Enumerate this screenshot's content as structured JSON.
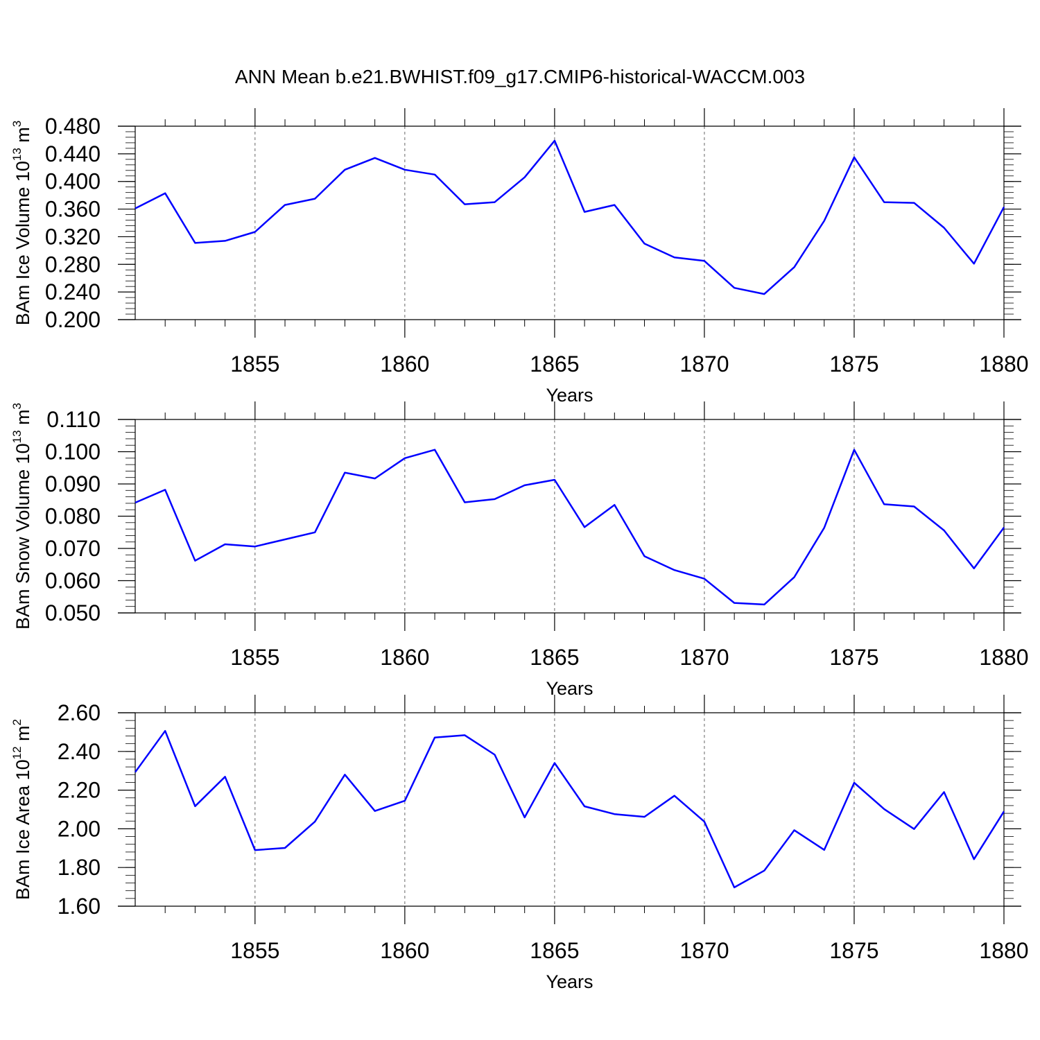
{
  "title": "ANN Mean b.e21.BWHIST.f09_g17.CMIP6-historical-WACCM.003",
  "line_color": "#0000ff",
  "chart_data": [
    {
      "type": "line",
      "ylabel": {
        "main": "BAm Ice Volume 10",
        "sup": "13",
        "unit": " m",
        "unit_sup": "3"
      },
      "xlabel": "Years",
      "xlim": [
        1851,
        1880
      ],
      "ylim": [
        0.2,
        0.48
      ],
      "x_ticks": [
        1855,
        1860,
        1865,
        1870,
        1875,
        1880
      ],
      "x_tick_labels": [
        "1855",
        "1860",
        "1865",
        "1870",
        "1875",
        "1880"
      ],
      "y_ticks": [
        0.2,
        0.24,
        0.28,
        0.32,
        0.36,
        0.4,
        0.44,
        0.48
      ],
      "y_tick_labels": [
        "0.200",
        "0.240",
        "0.280",
        "0.320",
        "0.360",
        "0.400",
        "0.440",
        "0.480"
      ],
      "y_minor_step": 0.008,
      "grid": "dashed vertical at major x ticks",
      "x": [
        1851,
        1852,
        1853,
        1854,
        1855,
        1856,
        1857,
        1858,
        1859,
        1860,
        1861,
        1862,
        1863,
        1864,
        1865,
        1866,
        1867,
        1868,
        1869,
        1870,
        1871,
        1872,
        1873,
        1874,
        1875,
        1876,
        1877,
        1878,
        1879,
        1880
      ],
      "y": [
        0.361,
        0.383,
        0.311,
        0.314,
        0.327,
        0.366,
        0.375,
        0.417,
        0.434,
        0.417,
        0.41,
        0.367,
        0.37,
        0.406,
        0.459,
        0.356,
        0.366,
        0.31,
        0.29,
        0.285,
        0.246,
        0.237,
        0.276,
        0.343,
        0.435,
        0.37,
        0.369,
        0.333,
        0.281,
        0.363
      ]
    },
    {
      "type": "line",
      "ylabel": {
        "main": "BAm Snow Volume 10",
        "sup": "13",
        "unit": " m",
        "unit_sup": "3"
      },
      "xlabel": "Years",
      "xlim": [
        1851,
        1880
      ],
      "ylim": [
        0.05,
        0.11
      ],
      "x_ticks": [
        1855,
        1860,
        1865,
        1870,
        1875,
        1880
      ],
      "x_tick_labels": [
        "1855",
        "1860",
        "1865",
        "1870",
        "1875",
        "1880"
      ],
      "y_ticks": [
        0.05,
        0.06,
        0.07,
        0.08,
        0.09,
        0.1,
        0.11
      ],
      "y_tick_labels": [
        "0.050",
        "0.060",
        "0.070",
        "0.080",
        "0.090",
        "0.100",
        "0.110"
      ],
      "y_minor_step": 0.002,
      "grid": "dashed vertical at major x ticks",
      "x": [
        1851,
        1852,
        1853,
        1854,
        1855,
        1856,
        1857,
        1858,
        1859,
        1860,
        1861,
        1862,
        1863,
        1864,
        1865,
        1866,
        1867,
        1868,
        1869,
        1870,
        1871,
        1872,
        1873,
        1874,
        1875,
        1876,
        1877,
        1878,
        1879,
        1880
      ],
      "y": [
        0.0842,
        0.0882,
        0.0662,
        0.0713,
        0.0706,
        0.0728,
        0.075,
        0.0935,
        0.0917,
        0.098,
        0.1006,
        0.0843,
        0.0853,
        0.0896,
        0.0913,
        0.0766,
        0.0835,
        0.0676,
        0.0633,
        0.0606,
        0.0531,
        0.0526,
        0.0611,
        0.0764,
        0.1006,
        0.0837,
        0.083,
        0.0756,
        0.0638,
        0.0765
      ]
    },
    {
      "type": "line",
      "ylabel": {
        "main": "BAm Ice Area 10",
        "sup": "12",
        "unit": " m",
        "unit_sup": "2"
      },
      "xlabel": "Years",
      "xlim": [
        1851,
        1880
      ],
      "ylim": [
        1.6,
        2.6
      ],
      "x_ticks": [
        1855,
        1860,
        1865,
        1870,
        1875,
        1880
      ],
      "x_tick_labels": [
        "1855",
        "1860",
        "1865",
        "1870",
        "1875",
        "1880"
      ],
      "y_ticks": [
        1.6,
        1.8,
        2.0,
        2.2,
        2.4,
        2.6
      ],
      "y_tick_labels": [
        "1.60",
        "1.80",
        "2.00",
        "2.20",
        "2.40",
        "2.60"
      ],
      "y_minor_step": 0.04,
      "grid": "dashed vertical at major x ticks",
      "x": [
        1851,
        1852,
        1853,
        1854,
        1855,
        1856,
        1857,
        1858,
        1859,
        1860,
        1861,
        1862,
        1863,
        1864,
        1865,
        1866,
        1867,
        1868,
        1869,
        1870,
        1871,
        1872,
        1873,
        1874,
        1875,
        1876,
        1877,
        1878,
        1879,
        1880
      ],
      "y": [
        2.293,
        2.506,
        2.117,
        2.269,
        1.89,
        1.901,
        2.037,
        2.28,
        2.092,
        2.145,
        2.472,
        2.484,
        2.383,
        2.059,
        2.34,
        2.116,
        2.076,
        2.062,
        2.171,
        2.037,
        1.697,
        1.784,
        1.993,
        1.891,
        2.238,
        2.102,
        1.999,
        2.19,
        1.843,
        2.09
      ]
    }
  ]
}
